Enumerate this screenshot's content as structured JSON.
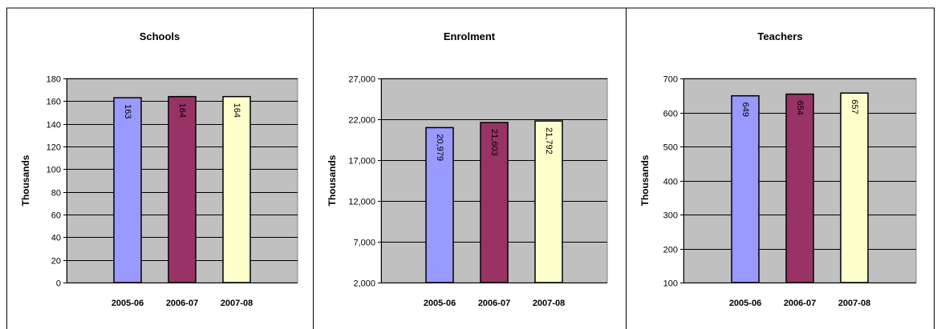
{
  "colors": {
    "plot_bg": "#c0c0c0",
    "bar_colors": [
      "#9999ff",
      "#993366",
      "#ffffcc"
    ],
    "border": "#000000"
  },
  "chart_data": [
    {
      "type": "bar",
      "title": "Schools",
      "ylabel": "Thousands",
      "xlabel": "",
      "categories": [
        "2005-06",
        "2006-07",
        "2007-08"
      ],
      "values": [
        163,
        164,
        164
      ],
      "ylim": [
        0,
        180
      ],
      "yticks": [
        0,
        20,
        40,
        60,
        80,
        100,
        120,
        140,
        160,
        180
      ],
      "ytick_labels": [
        "0",
        "20",
        "40",
        "60",
        "80",
        "100",
        "120",
        "140",
        "160",
        "180"
      ],
      "data_labels": [
        "163",
        "164",
        "164"
      ],
      "grid": true,
      "legend": "none"
    },
    {
      "type": "bar",
      "title": "Enrolment",
      "ylabel": "Thousands",
      "xlabel": "",
      "categories": [
        "2005-06",
        "2006-07",
        "2007-08"
      ],
      "values": [
        20979,
        21603,
        21792
      ],
      "ylim": [
        2000,
        27000
      ],
      "yticks": [
        2000,
        7000,
        12000,
        17000,
        22000,
        27000
      ],
      "ytick_labels": [
        "2,000",
        "7,000",
        "12,000",
        "17,000",
        "22,000",
        "27,000"
      ],
      "data_labels": [
        "20,979",
        "21,603",
        "21,792"
      ],
      "grid": true,
      "legend": "none"
    },
    {
      "type": "bar",
      "title": "Teachers",
      "ylabel": "Thousands",
      "xlabel": "",
      "categories": [
        "2005-06",
        "2006-07",
        "2007-08"
      ],
      "values": [
        649,
        654,
        657
      ],
      "ylim": [
        100,
        700
      ],
      "yticks": [
        100,
        200,
        300,
        400,
        500,
        600,
        700
      ],
      "ytick_labels": [
        "100",
        "200",
        "300",
        "400",
        "500",
        "600",
        "700"
      ],
      "data_labels": [
        "649",
        "654",
        "657"
      ],
      "grid": true,
      "legend": "none"
    }
  ]
}
